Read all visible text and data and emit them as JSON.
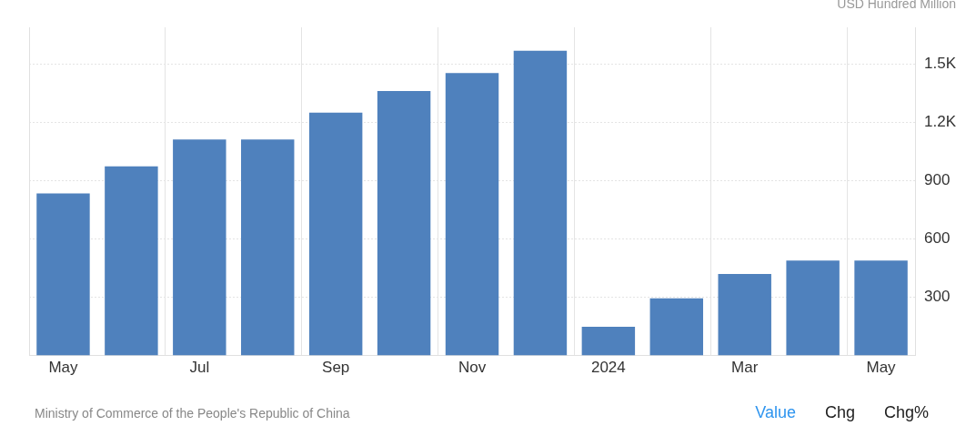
{
  "chart_data": {
    "type": "bar",
    "ylabel": "USD Hundred Million",
    "categories": [
      "May",
      null,
      "Jul",
      null,
      "Sep",
      null,
      "Nov",
      null,
      "2024",
      null,
      "Mar",
      null,
      "May"
    ],
    "values": [
      835,
      974,
      1112,
      1112,
      1251,
      1362,
      1454,
      1569,
      148,
      295,
      420,
      489,
      489
    ],
    "color": "#4f81bd",
    "ylim": [
      0,
      1690
    ],
    "yticks": [
      300,
      600,
      900,
      {
        "value": 1200,
        "label": "1.2K"
      },
      {
        "value": 1500,
        "label": "1.5K"
      }
    ],
    "grid": true,
    "annotations": [
      "Ministry of Commerce of the People's Republic of China",
      "Value",
      "Chg",
      "Chg%"
    ]
  }
}
